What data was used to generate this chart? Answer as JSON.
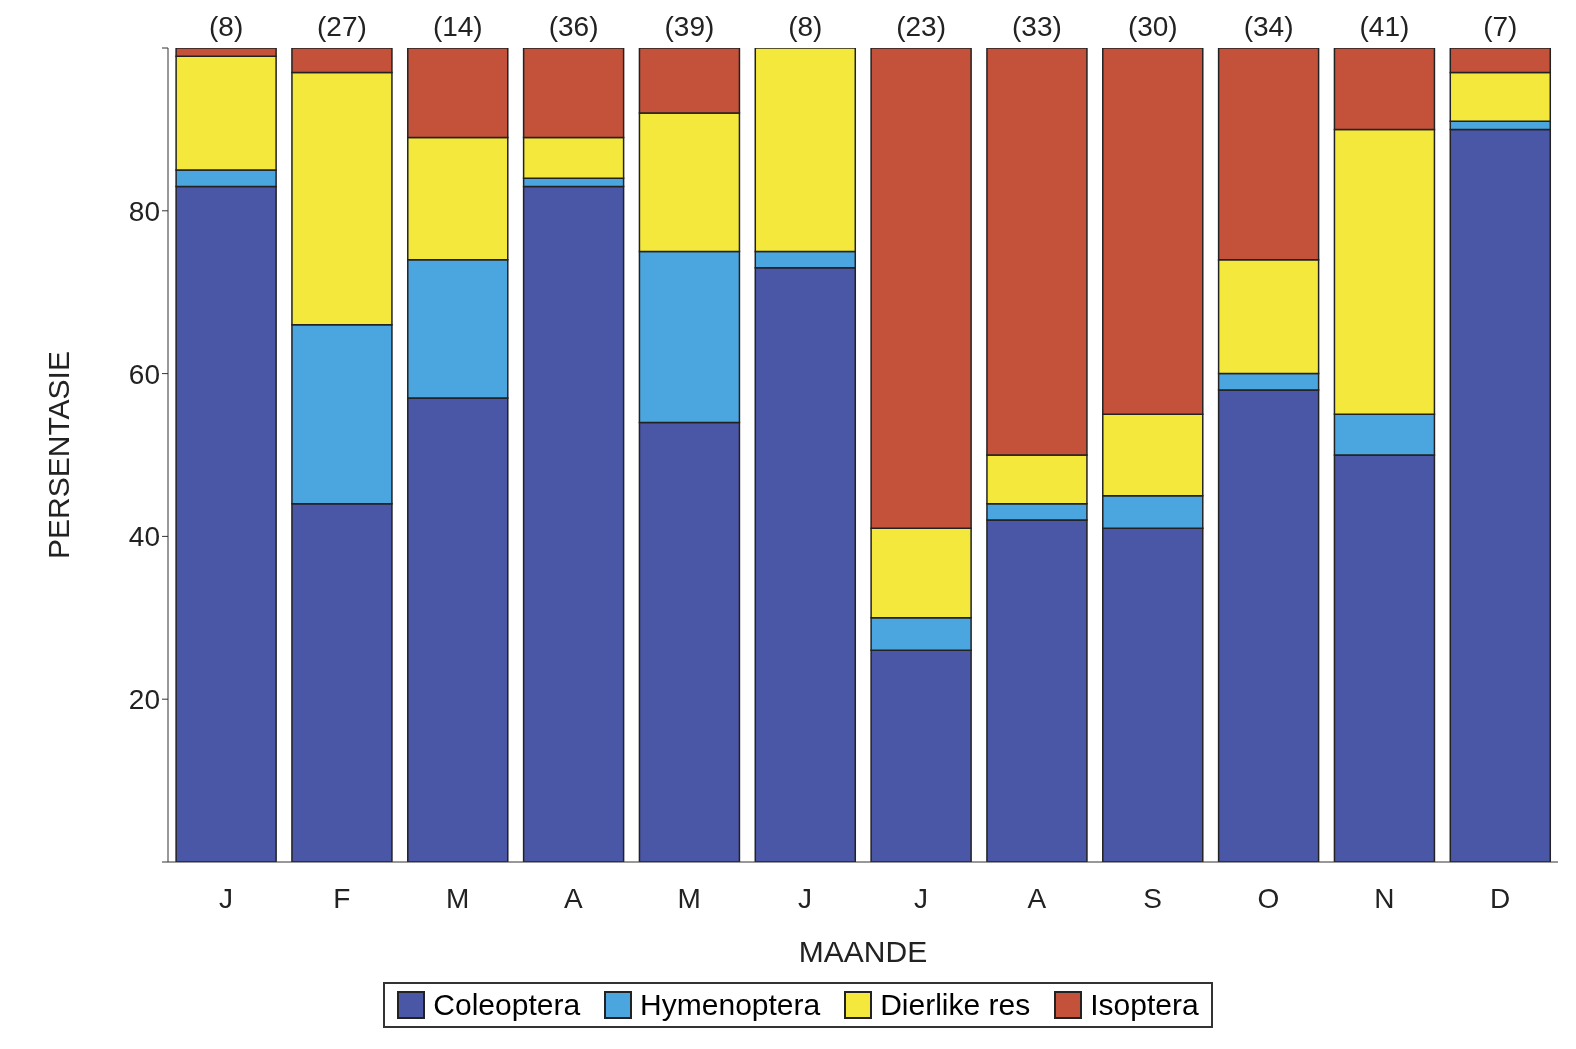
{
  "chart_data": {
    "type": "bar",
    "stacked": true,
    "xlabel": "MAANDE",
    "ylabel": "PERSENTASIE",
    "categories": [
      "J",
      "F",
      "M",
      "A",
      "M",
      "J",
      "J",
      "A",
      "S",
      "O",
      "N",
      "D"
    ],
    "series": [
      {
        "name": "Coleoptera",
        "color": "#4a56a6",
        "values": [
          83,
          44,
          57,
          83,
          54,
          73,
          26,
          42,
          41,
          58,
          50,
          90
        ]
      },
      {
        "name": "Hymenoptera",
        "color": "#4ba6e0",
        "values": [
          2,
          22,
          17,
          1,
          21,
          2,
          4,
          2,
          4,
          2,
          5,
          1
        ]
      },
      {
        "name": "Dierlike res",
        "color": "#f4e83c",
        "values": [
          14,
          31,
          15,
          5,
          17,
          25,
          11,
          6,
          10,
          14,
          35,
          6
        ]
      },
      {
        "name": "Isoptera",
        "color": "#c4523a",
        "values": [
          1,
          3,
          11,
          11,
          8,
          0,
          59,
          50,
          45,
          26,
          10,
          3
        ]
      }
    ],
    "annotations": [
      "(8)",
      "(27)",
      "(14)",
      "(36)",
      "(39)",
      "(8)",
      "(23)",
      "(33)",
      "(30)",
      "(34)",
      "(41)",
      "(7)"
    ],
    "ylim": [
      0,
      100
    ],
    "yticks": [
      {
        "value": 0,
        "label": null
      },
      20,
      40,
      60,
      80,
      {
        "value": 100,
        "label": null
      }
    ],
    "legend": "bottom"
  }
}
